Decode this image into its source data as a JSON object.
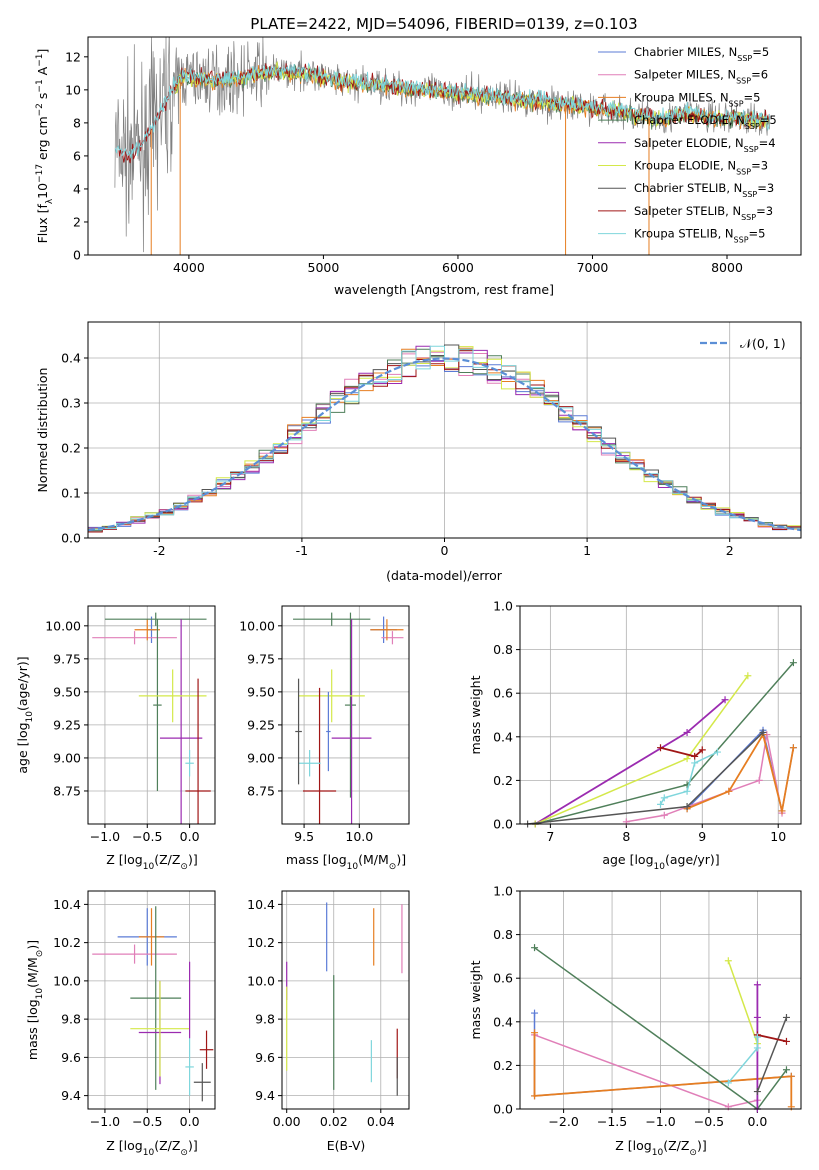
{
  "title": "PLATE=2422, MJD=54096, FIBERID=0139, z=0.103",
  "colors": {
    "chabrier_miles": "#5b7bd6",
    "salpeter_miles": "#e07fb8",
    "kroupa_miles": "#e67e22",
    "chabrier_elodie": "#4f7f5a",
    "salpeter_elodie": "#9b2bb0",
    "kroupa_elodie": "#d4e84a",
    "chabrier_stelib": "#555555",
    "salpeter_stelib": "#a01616",
    "kroupa_stelib": "#7fd6dc",
    "data": "#808080",
    "normal": "#5b8fd6"
  },
  "chart_data": [
    {
      "type": "line",
      "panel": "spectrum",
      "xlabel": "wavelength [Angstrom, rest frame]",
      "ylabel": "Flux [f",
      "ylabel_sub": "λ",
      "ylabel_rest": "10",
      "ylabel_exp": "−17",
      "ylabel_units": " erg cm",
      "ylabel_exp2": "−2",
      "ylabel_units2": " s",
      "ylabel_exp3": "−1",
      "ylabel_units3": " A",
      "ylabel_exp4": "−1",
      "ylabel_close": "]",
      "xlim": [
        3250,
        8550
      ],
      "ylim": [
        0,
        13.2
      ],
      "xticks": [
        4000,
        5000,
        6000,
        7000,
        8000
      ],
      "yticks": [
        0,
        2,
        4,
        6,
        8,
        10,
        12
      ],
      "legend": [
        {
          "key": "chabrier_miles",
          "label": "Chabrier MILES, N",
          "sub": "SSP",
          "tail": "=5"
        },
        {
          "key": "salpeter_miles",
          "label": "Salpeter MILES, N",
          "sub": "SSP",
          "tail": "=6"
        },
        {
          "key": "kroupa_miles",
          "label": "Kroupa MILES, N",
          "sub": "SSP",
          "tail": "=5"
        },
        {
          "key": "chabrier_elodie",
          "label": "Chabrier ELODIE, N",
          "sub": "SSP",
          "tail": "=5"
        },
        {
          "key": "salpeter_elodie",
          "label": "Salpeter ELODIE, N",
          "sub": "SSP",
          "tail": "=4"
        },
        {
          "key": "kroupa_elodie",
          "label": "Kroupa ELODIE, N",
          "sub": "SSP",
          "tail": "=3"
        },
        {
          "key": "chabrier_stelib",
          "label": "Chabrier STELIB, N",
          "sub": "SSP",
          "tail": "=3"
        },
        {
          "key": "salpeter_stelib",
          "label": "Salpeter STELIB, N",
          "sub": "SSP",
          "tail": "=3"
        },
        {
          "key": "kroupa_stelib",
          "label": "Kroupa STELIB, N",
          "sub": "SSP",
          "tail": "=5"
        }
      ],
      "continuum": [
        [
          3450,
          6.3
        ],
        [
          3550,
          6.0
        ],
        [
          3650,
          6.6
        ],
        [
          3750,
          8.0
        ],
        [
          3850,
          9.6
        ],
        [
          3950,
          10.8
        ],
        [
          4100,
          10.7
        ],
        [
          4300,
          10.6
        ],
        [
          4600,
          11.1
        ],
        [
          4900,
          11.0
        ],
        [
          5100,
          10.5
        ],
        [
          5400,
          10.3
        ],
        [
          5700,
          10.0
        ],
        [
          6000,
          9.8
        ],
        [
          6300,
          9.6
        ],
        [
          6600,
          9.3
        ],
        [
          6900,
          9.0
        ],
        [
          7200,
          8.7
        ],
        [
          7500,
          8.2
        ],
        [
          7700,
          8.6
        ],
        [
          7900,
          8.3
        ],
        [
          8100,
          8.3
        ],
        [
          8320,
          8.1
        ]
      ],
      "drops": [
        [
          3720,
          0
        ],
        [
          3935,
          0
        ],
        [
          6800,
          0
        ],
        [
          7420,
          0
        ]
      ]
    },
    {
      "type": "bar",
      "panel": "residual-histogram",
      "xlabel": "(data-model)/error",
      "ylabel": "Normed distribution",
      "xlim": [
        -2.5,
        2.5
      ],
      "ylim": [
        0,
        0.48
      ],
      "xticks": [
        -2,
        -1,
        0,
        1,
        2
      ],
      "yticks": [
        0.0,
        0.1,
        0.2,
        0.3,
        0.4
      ],
      "legend_label": "𝒩(0, 1)",
      "bin_width": 0.1,
      "bin_start": -2.5
    },
    {
      "type": "scatter",
      "panel": "age-vs-Z",
      "xlabel": "Z [log",
      "xlabel_sub": "10",
      "xlabel_rest": "(Z/Z",
      "xlabel_sub2": "⊙",
      "xlabel_close": ")]",
      "ylabel": "age  [log",
      "ylabel_sub": "10",
      "ylabel_rest": "(age/yr)]",
      "xlim": [
        -1.2,
        0.3
      ],
      "ylim": [
        8.5,
        10.15
      ],
      "xticks": [
        -1.0,
        -0.5,
        0.0
      ],
      "xtick_labels": [
        "−1.0",
        "−0.5",
        "0.0"
      ],
      "yticks": [
        8.75,
        9.0,
        9.25,
        9.5,
        9.75,
        10.0
      ],
      "ytick_labels": [
        "8.75",
        "9.00",
        "9.25",
        "9.50",
        "9.75",
        "10.00"
      ]
    },
    {
      "type": "scatter",
      "panel": "age-vs-mass",
      "xlabel": "mass [log",
      "xlabel_sub": "10",
      "xlabel_rest": "(M/M",
      "xlabel_sub2": "⊙",
      "xlabel_close": ")]",
      "xlim": [
        9.3,
        10.45
      ],
      "ylim": [
        8.5,
        10.15
      ],
      "xticks": [
        9.5,
        10.0
      ],
      "xtick_labels": [
        "9.5",
        "10.0"
      ],
      "yticks": [
        8.75,
        9.0,
        9.25,
        9.5,
        9.75,
        10.0
      ],
      "ytick_labels": [
        "8.75",
        "9.00",
        "9.25",
        "9.50",
        "9.75",
        "10.00"
      ]
    },
    {
      "type": "line",
      "panel": "mass-weight-vs-age",
      "xlabel": "age  [log",
      "xlabel_sub": "10",
      "xlabel_rest": "(age/yr)]",
      "ylabel": "mass weight",
      "xlim": [
        6.6,
        10.3
      ],
      "ylim": [
        0,
        1.0
      ],
      "xticks": [
        7,
        8,
        9,
        10
      ],
      "yticks": [
        0.0,
        0.2,
        0.4,
        0.6,
        0.8,
        1.0
      ],
      "series": [
        {
          "key": "chabrier_miles",
          "points": [
            [
              8.8,
              0.07
            ],
            [
              9.8,
              0.43
            ],
            [
              10.05,
              0.06
            ],
            [
              10.2,
              0.35
            ]
          ]
        },
        {
          "key": "salpeter_miles",
          "points": [
            [
              8.0,
              0.01
            ],
            [
              8.5,
              0.04
            ],
            [
              9.35,
              0.15
            ],
            [
              9.75,
              0.2
            ],
            [
              9.85,
              0.41
            ],
            [
              10.05,
              0.05
            ]
          ]
        },
        {
          "key": "kroupa_miles",
          "points": [
            [
              8.8,
              0.07
            ],
            [
              9.35,
              0.15
            ],
            [
              9.8,
              0.41
            ],
            [
              10.05,
              0.06
            ],
            [
              10.2,
              0.35
            ]
          ]
        },
        {
          "key": "chabrier_elodie",
          "points": [
            [
              6.8,
              0.0
            ],
            [
              8.8,
              0.18
            ],
            [
              10.2,
              0.74
            ]
          ]
        },
        {
          "key": "salpeter_elodie",
          "points": [
            [
              6.8,
              0.0
            ],
            [
              8.8,
              0.42
            ],
            [
              9.3,
              0.57
            ]
          ]
        },
        {
          "key": "kroupa_elodie",
          "points": [
            [
              6.8,
              0.0
            ],
            [
              8.8,
              0.3
            ],
            [
              9.6,
              0.68
            ]
          ]
        },
        {
          "key": "chabrier_stelib",
          "points": [
            [
              6.7,
              0.0
            ],
            [
              8.8,
              0.08
            ],
            [
              9.8,
              0.42
            ]
          ]
        },
        {
          "key": "salpeter_stelib",
          "points": [
            [
              8.45,
              0.35
            ],
            [
              8.9,
              0.31
            ],
            [
              9.0,
              0.34
            ]
          ]
        },
        {
          "key": "kroupa_stelib",
          "points": [
            [
              8.45,
              0.09
            ],
            [
              8.5,
              0.12
            ],
            [
              8.8,
              0.15
            ],
            [
              8.9,
              0.28
            ],
            [
              9.2,
              0.33
            ]
          ]
        }
      ]
    },
    {
      "type": "scatter",
      "panel": "mass-vs-Z",
      "xlabel": "Z [log",
      "xlabel_sub": "10",
      "xlabel_rest": "(Z/Z",
      "xlabel_sub2": "⊙",
      "xlabel_close": ")]",
      "ylabel": "mass [log",
      "ylabel_sub": "10",
      "ylabel_rest": "(M/M",
      "ylabel_sub2": "⊙",
      "ylabel_close": ")]",
      "xlim": [
        -1.2,
        0.3
      ],
      "ylim": [
        9.33,
        10.47
      ],
      "xticks": [
        -1.0,
        -0.5,
        0.0
      ],
      "xtick_labels": [
        "−1.0",
        "−0.5",
        "0.0"
      ],
      "yticks": [
        9.4,
        9.6,
        9.8,
        10.0,
        10.2,
        10.4
      ],
      "ytick_labels": [
        "9.4",
        "9.6",
        "9.8",
        "10.0",
        "10.2",
        "10.4"
      ]
    },
    {
      "type": "scatter",
      "panel": "mass-vs-EBV",
      "xlabel": "E(B-V)",
      "xlim": [
        -0.002,
        0.052
      ],
      "ylim": [
        9.33,
        10.47
      ],
      "xticks": [
        0.0,
        0.02,
        0.04
      ],
      "xtick_labels": [
        "0.00",
        "0.02",
        "0.04"
      ],
      "yticks": [
        9.4,
        9.6,
        9.8,
        10.0,
        10.2,
        10.4
      ],
      "ytick_labels": [
        "9.4",
        "9.6",
        "9.8",
        "10.0",
        "10.2",
        "10.4"
      ]
    },
    {
      "type": "line",
      "panel": "mass-weight-vs-Z",
      "xlabel": "Z [log",
      "xlabel_sub": "10",
      "xlabel_rest": "(Z/Z",
      "xlabel_sub2": "⊙",
      "xlabel_close": ")]",
      "ylabel": "mass weight",
      "xlim": [
        -2.45,
        0.45
      ],
      "ylim": [
        0,
        1.0
      ],
      "xticks": [
        -2.0,
        -1.5,
        -1.0,
        -0.5,
        0.0
      ],
      "xtick_labels": [
        "−2.0",
        "−1.5",
        "−1.0",
        "−0.5",
        "0.0"
      ],
      "yticks": [
        0.0,
        0.2,
        0.4,
        0.6,
        0.8,
        1.0
      ],
      "series": [
        {
          "key": "chabrier_miles",
          "points": [
            [
              -2.3,
              0.44
            ],
            [
              -2.3,
              0.06
            ],
            [
              0.35,
              0.15
            ]
          ]
        },
        {
          "key": "salpeter_miles",
          "points": [
            [
              -2.3,
              0.34
            ],
            [
              -0.3,
              0.01
            ],
            [
              0.0,
              0.04
            ]
          ]
        },
        {
          "key": "kroupa_miles",
          "points": [
            [
              -2.3,
              0.35
            ],
            [
              -2.3,
              0.06
            ],
            [
              0.35,
              0.15
            ],
            [
              0.35,
              0.01
            ]
          ]
        },
        {
          "key": "chabrier_elodie",
          "points": [
            [
              -2.3,
              0.74
            ],
            [
              0.0,
              0.0
            ],
            [
              0.3,
              0.18
            ]
          ]
        },
        {
          "key": "salpeter_elodie",
          "points": [
            [
              0.0,
              0.57
            ],
            [
              0.0,
              0.42
            ],
            [
              0.0,
              0.0
            ]
          ]
        },
        {
          "key": "kroupa_elodie",
          "points": [
            [
              -0.3,
              0.68
            ],
            [
              0.0,
              0.3
            ]
          ]
        },
        {
          "key": "chabrier_stelib",
          "points": [
            [
              0.0,
              0.08
            ],
            [
              0.3,
              0.42
            ]
          ]
        },
        {
          "key": "salpeter_stelib",
          "points": [
            [
              0.0,
              0.34
            ],
            [
              0.3,
              0.31
            ]
          ]
        },
        {
          "key": "kroupa_stelib",
          "points": [
            [
              -0.3,
              0.12
            ],
            [
              0.0,
              0.28
            ],
            [
              0.0,
              0.33
            ]
          ]
        }
      ]
    }
  ],
  "errorbars": {
    "age_z": [
      {
        "key": "chabrier_miles",
        "x": -0.45,
        "y": 9.97,
        "xe": 0.05,
        "ye": 0.1
      },
      {
        "key": "salpeter_miles",
        "x": -0.65,
        "y": 9.91,
        "xe": 0.5,
        "ye": 0.05
      },
      {
        "key": "kroupa_miles",
        "x": -0.5,
        "y": 9.97,
        "xe": 0.15,
        "ye": 0.08
      },
      {
        "key": "chabrier_elodie",
        "x": -0.4,
        "y": 10.05,
        "xe": 0.6,
        "ye": 0.05
      },
      {
        "key": "chabrier_elodie",
        "x": -0.38,
        "y": 9.4,
        "xe": 0.05,
        "ye": 0.65
      },
      {
        "key": "salpeter_elodie",
        "x": -0.1,
        "y": 9.15,
        "xe": 0.25,
        "ye": 0.9
      },
      {
        "key": "kroupa_elodie",
        "x": -0.2,
        "y": 9.47,
        "xe": 0.4,
        "ye": 0.2
      },
      {
        "key": "salpeter_stelib",
        "x": 0.1,
        "y": 8.75,
        "xe": 0.15,
        "ye": 0.85
      },
      {
        "key": "kroupa_stelib",
        "x": 0.0,
        "y": 8.96,
        "xe": 0.05,
        "ye": 0.1
      }
    ],
    "age_mass": [
      {
        "key": "chabrier_miles",
        "x": 10.22,
        "y": 9.97,
        "xe": 0.12,
        "ye": 0.1
      },
      {
        "key": "salpeter_miles",
        "x": 10.3,
        "y": 9.91,
        "xe": 0.1,
        "ye": 0.05
      },
      {
        "key": "kroupa_miles",
        "x": 10.25,
        "y": 9.97,
        "xe": 0.15,
        "ye": 0.08
      },
      {
        "key": "chabrier_elodie",
        "x": 9.75,
        "y": 10.05,
        "xe": 0.35,
        "ye": 0.05
      },
      {
        "key": "chabrier_elodie",
        "x": 9.92,
        "y": 9.4,
        "xe": 0.05,
        "ye": 0.7
      },
      {
        "key": "salpeter_elodie",
        "x": 9.93,
        "y": 9.15,
        "xe": 0.18,
        "ye": 0.9
      },
      {
        "key": "kroupa_elodie",
        "x": 9.75,
        "y": 9.47,
        "xe": 0.3,
        "ye": 0.2
      },
      {
        "key": "salpeter_stelib",
        "x": 9.64,
        "y": 8.75,
        "xe": 0.15,
        "ye": 0.78
      },
      {
        "key": "kroupa_stelib",
        "x": 9.55,
        "y": 8.96,
        "xe": 0.1,
        "ye": 0.1
      },
      {
        "key": "chabrier_stelib",
        "x": 9.45,
        "y": 9.2,
        "xe": 0.03,
        "ye": 0.4
      },
      {
        "key": "chabrier_miles",
        "x": 9.72,
        "y": 9.2,
        "xe": 0.02,
        "ye": 0.3
      }
    ],
    "mass_z": [
      {
        "key": "chabrier_miles",
        "x": -0.5,
        "y": 10.23,
        "xe": 0.35,
        "ye": 0.15
      },
      {
        "key": "salpeter_miles",
        "x": -0.65,
        "y": 10.14,
        "xe": 0.5,
        "ye": 0.05
      },
      {
        "key": "kroupa_miles",
        "x": -0.45,
        "y": 10.23,
        "xe": 0.15,
        "ye": 0.15
      },
      {
        "key": "chabrier_elodie",
        "x": -0.4,
        "y": 9.91,
        "xe": 0.3,
        "ye": 0.48
      },
      {
        "key": "salpeter_elodie",
        "x": -0.35,
        "y": 9.73,
        "xe": 0.25,
        "ye": 0.27
      },
      {
        "key": "kroupa_elodie",
        "x": -0.35,
        "y": 9.75,
        "xe": 0.35,
        "ye": 0.25
      },
      {
        "key": "kroupa_stelib",
        "x": 0.0,
        "y": 9.55,
        "xe": 0.05,
        "ye": 0.15
      },
      {
        "key": "chabrier_stelib",
        "x": 0.15,
        "y": 9.47,
        "xe": 0.1,
        "ye": 0.1
      },
      {
        "key": "salpeter_stelib",
        "x": 0.2,
        "y": 9.64,
        "xe": 0.08,
        "ye": 0.1
      },
      {
        "key": "salpeter_elodie",
        "x": 0.0,
        "y": 9.9,
        "xe": 0.0,
        "ye": 0.2
      }
    ],
    "mass_ebv": [
      {
        "key": "chabrier_miles",
        "x": 0.017,
        "y": 10.23,
        "xe": 0.0,
        "ye": 0.18
      },
      {
        "key": "kroupa_miles",
        "x": 0.037,
        "y": 10.23,
        "xe": 0.0,
        "ye": 0.15
      },
      {
        "key": "salpeter_miles",
        "x": 0.049,
        "y": 10.22,
        "xe": 0.0,
        "ye": 0.18
      },
      {
        "key": "salpeter_elodie",
        "x": 0.0,
        "y": 10.0,
        "xe": 0.0,
        "ye": 0.1
      },
      {
        "key": "chabrier_elodie",
        "x": 0.02,
        "y": 9.73,
        "xe": 0.0,
        "ye": 0.3
      },
      {
        "key": "kroupa_elodie",
        "x": 0.0,
        "y": 9.75,
        "xe": 0.0,
        "ye": 0.22
      },
      {
        "key": "kroupa_stelib",
        "x": 0.036,
        "y": 9.58,
        "xe": 0.0,
        "ye": 0.11
      },
      {
        "key": "salpeter_stelib",
        "x": 0.047,
        "y": 9.62,
        "xe": 0.0,
        "ye": 0.13
      },
      {
        "key": "chabrier_stelib",
        "x": 0.047,
        "y": 9.5,
        "xe": 0.0,
        "ye": 0.1
      }
    ]
  }
}
